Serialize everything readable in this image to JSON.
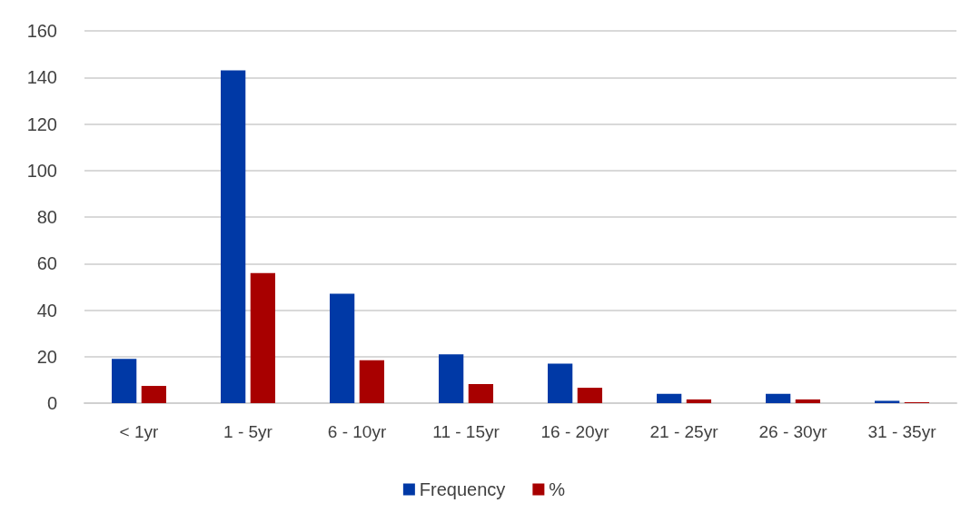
{
  "chart_data": {
    "type": "bar",
    "categories": [
      "< 1yr",
      "1 - 5yr",
      "6 - 10yr",
      "11 - 15yr",
      "16 - 20yr",
      "21 - 25yr",
      "26 - 30yr",
      "31 - 35yr"
    ],
    "series": [
      {
        "name": "Frequency",
        "color": "#0039a6",
        "values": [
          19,
          143,
          47,
          21,
          17,
          4,
          4,
          1
        ]
      },
      {
        "name": "%",
        "color": "#a80000",
        "values": [
          7.4,
          55.9,
          18.4,
          8.2,
          6.6,
          1.6,
          1.6,
          0.4
        ]
      }
    ],
    "ylim": [
      0,
      160
    ],
    "yticks": [
      0,
      20,
      40,
      60,
      80,
      100,
      120,
      140,
      160
    ],
    "grid": "y",
    "legend": "bottom"
  }
}
